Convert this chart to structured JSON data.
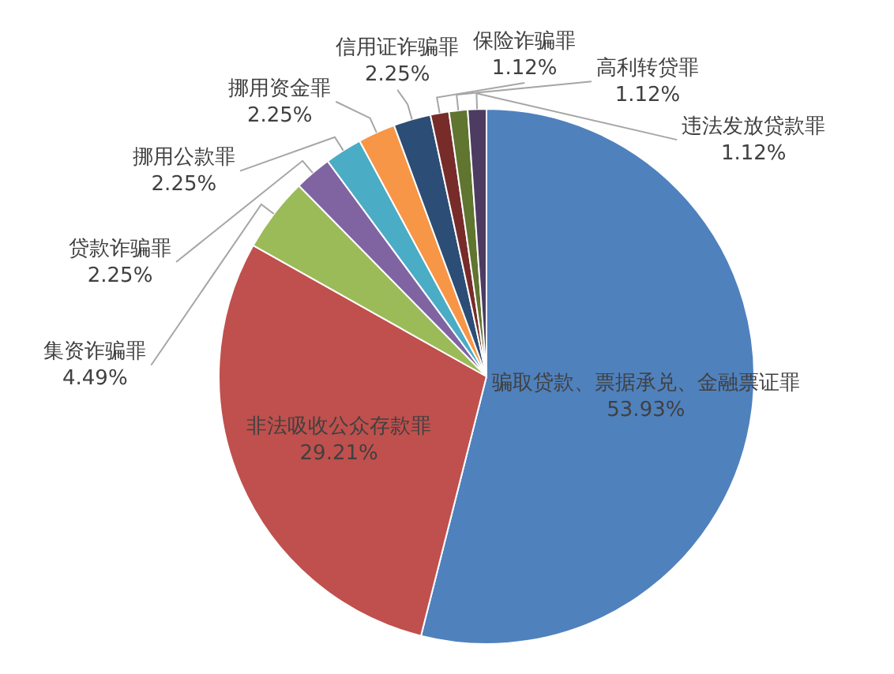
{
  "chart_data": {
    "type": "pie",
    "categories": [
      "骗取贷款、票据承兑、金融票证罪",
      "非法吸收公众存款罪",
      "集资诈骗罪",
      "贷款诈骗罪",
      "挪用公款罪",
      "挪用资金罪",
      "信用证诈骗罪",
      "保险诈骗罪",
      "高利转贷罪",
      "违法发放贷款罪"
    ],
    "values": [
      53.93,
      29.21,
      4.49,
      2.25,
      2.25,
      2.25,
      2.25,
      1.12,
      1.12,
      1.12
    ],
    "value_labels": [
      "53.93%",
      "29.21%",
      "4.49%",
      "2.25%",
      "2.25%",
      "2.25%",
      "2.25%",
      "1.12%",
      "1.12%",
      "1.12%"
    ],
    "colors": [
      "#4f81bd",
      "#c0504d",
      "#9bbb59",
      "#8064a2",
      "#4bacc6",
      "#f79646",
      "#2c4d75",
      "#772c2a",
      "#5f7530",
      "#4d3b62"
    ],
    "legend": false
  }
}
